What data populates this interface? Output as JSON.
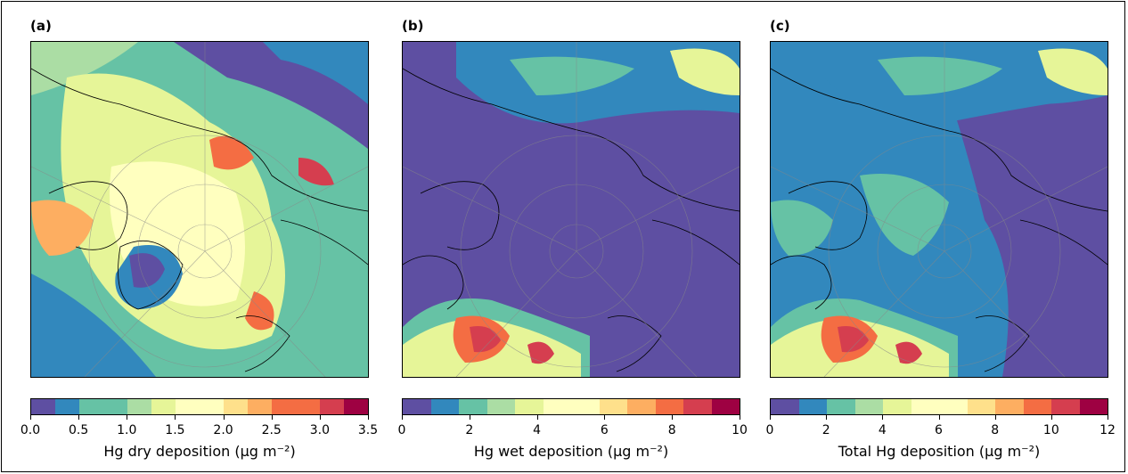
{
  "colormap": [
    "#5e4fa2",
    "#3288bd",
    "#66c2a5",
    "#abdda4",
    "#e6f598",
    "#ffffbf",
    "#fee08b",
    "#fdae61",
    "#f46d43",
    "#d53e4f",
    "#9e0142"
  ],
  "panels": [
    {
      "label": "(a)",
      "colorbar": {
        "title": "Hg dry deposition (μg m⁻²)",
        "min": 0,
        "max": 3.5,
        "segments": 14,
        "ticks": [
          "0.0",
          "0.5",
          "1.0",
          "1.5",
          "2.0",
          "2.5",
          "3.0",
          "3.5"
        ]
      },
      "icon": "polar-map-dry-deposition"
    },
    {
      "label": "(b)",
      "colorbar": {
        "title": "Hg wet deposition (μg m⁻²)",
        "min": 0,
        "max": 10,
        "segments": 12,
        "ticks": [
          "0",
          "2",
          "4",
          "6",
          "8",
          "10"
        ]
      },
      "icon": "polar-map-wet-deposition"
    },
    {
      "label": "(c)",
      "colorbar": {
        "title": "Total Hg deposition (μg m⁻²)",
        "min": 0,
        "max": 12,
        "segments": 12,
        "ticks": [
          "0",
          "2",
          "4",
          "6",
          "8",
          "10",
          "12"
        ]
      },
      "icon": "polar-map-total-deposition"
    }
  ]
}
